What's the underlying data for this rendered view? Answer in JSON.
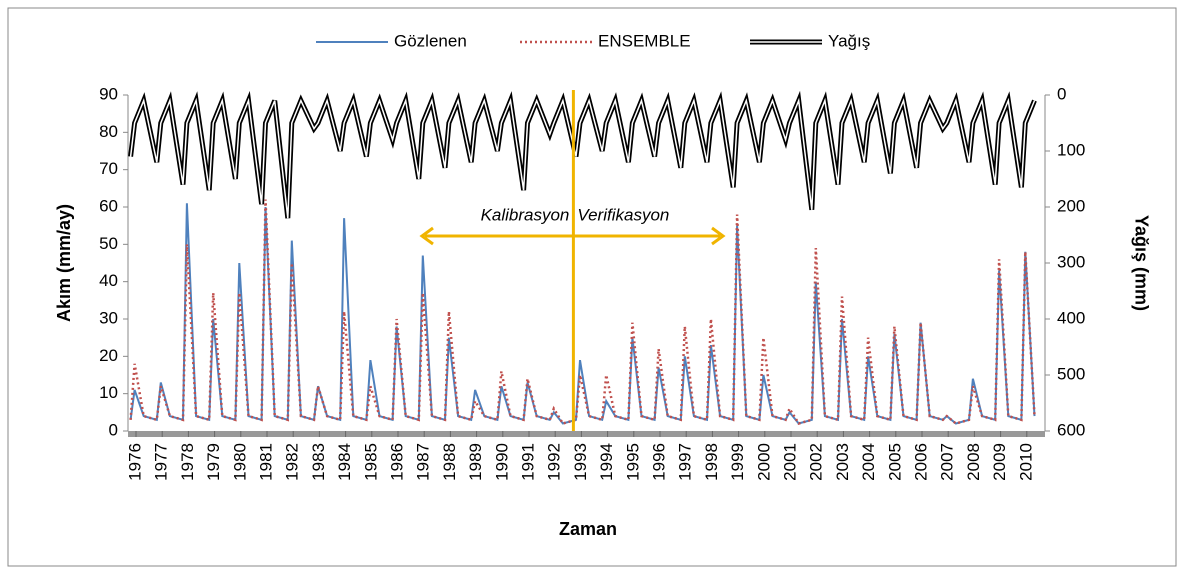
{
  "chart_data": {
    "type": "line",
    "x_label": "Zaman",
    "y_label": "Akım (mm/ay)",
    "y2_label": "Yağış (mm)",
    "annotations": [
      "Kalibrasyon",
      "Verifikasyon"
    ],
    "divider_x": 1993,
    "xlim": [
      1976,
      2011
    ],
    "xticks": [
      1976,
      1977,
      1978,
      1979,
      1980,
      1981,
      1982,
      1983,
      1984,
      1985,
      1986,
      1987,
      1988,
      1989,
      1990,
      1991,
      1992,
      1993,
      1994,
      1995,
      1996,
      1997,
      1998,
      1999,
      2000,
      2001,
      2002,
      2003,
      2004,
      2005,
      2006,
      2007,
      2008,
      2009,
      2010
    ],
    "ylim": [
      0,
      90
    ],
    "yticks": [
      0,
      10,
      20,
      30,
      40,
      50,
      60,
      70,
      80,
      90
    ],
    "y2lim": [
      600,
      0
    ],
    "y2ticks": [
      0,
      100,
      200,
      300,
      400,
      500,
      600
    ],
    "x": [
      1976.1,
      1976.25,
      1976.6,
      1977.1,
      1977.25,
      1977.6,
      1978.1,
      1978.25,
      1978.6,
      1979.1,
      1979.25,
      1979.6,
      1980.1,
      1980.25,
      1980.6,
      1981.1,
      1981.25,
      1981.6,
      1982.1,
      1982.25,
      1982.6,
      1983.1,
      1983.25,
      1983.6,
      1984.1,
      1984.25,
      1984.6,
      1985.1,
      1985.25,
      1985.6,
      1986.1,
      1986.25,
      1986.6,
      1987.1,
      1987.25,
      1987.6,
      1988.1,
      1988.25,
      1988.6,
      1989.1,
      1989.25,
      1989.6,
      1990.1,
      1990.25,
      1990.6,
      1991.1,
      1991.25,
      1991.6,
      1992.1,
      1992.25,
      1992.6,
      1993.1,
      1993.25,
      1993.6,
      1994.1,
      1994.25,
      1994.6,
      1995.1,
      1995.25,
      1995.6,
      1996.1,
      1996.25,
      1996.6,
      1997.1,
      1997.25,
      1997.6,
      1998.1,
      1998.25,
      1998.6,
      1999.1,
      1999.25,
      1999.6,
      2000.1,
      2000.25,
      2000.6,
      2001.1,
      2001.25,
      2001.6,
      2002.1,
      2002.25,
      2002.6,
      2003.1,
      2003.25,
      2003.6,
      2004.1,
      2004.25,
      2004.6,
      2005.1,
      2005.25,
      2005.6,
      2006.1,
      2006.25,
      2006.6,
      2007.1,
      2007.25,
      2007.6,
      2008.1,
      2008.25,
      2008.6,
      2009.1,
      2009.25,
      2009.6,
      2010.1,
      2010.25,
      2010.6
    ],
    "series": [
      {
        "name": "Gözlenen",
        "color": "#4f81bd",
        "style": "solid",
        "values": [
          3,
          11,
          4,
          3,
          13,
          4,
          3,
          61,
          4,
          3,
          30,
          4,
          3,
          45,
          4,
          3,
          60,
          4,
          3,
          51,
          4,
          3,
          12,
          4,
          3,
          57,
          4,
          3,
          19,
          4,
          3,
          28,
          4,
          3,
          47,
          4,
          3,
          25,
          4,
          3,
          11,
          4,
          3,
          12,
          4,
          3,
          13,
          4,
          3,
          5,
          2,
          3,
          19,
          4,
          3,
          8,
          4,
          3,
          25,
          4,
          3,
          17,
          4,
          3,
          20,
          4,
          3,
          23,
          4,
          3,
          55,
          4,
          3,
          15,
          4,
          3,
          5,
          2,
          3,
          40,
          4,
          3,
          30,
          4,
          3,
          20,
          4,
          3,
          26,
          4,
          3,
          29,
          4,
          3,
          4,
          2,
          3,
          14,
          4,
          3,
          43,
          4,
          3,
          48,
          4
        ]
      },
      {
        "name": "ENSEMBLE",
        "color": "#c0504d",
        "style": "dotted",
        "values": [
          3,
          18,
          4,
          3,
          12,
          4,
          3,
          50,
          4,
          3,
          37,
          4,
          3,
          37,
          4,
          3,
          62,
          4,
          3,
          45,
          4,
          3,
          12,
          4,
          3,
          32,
          4,
          3,
          12,
          4,
          3,
          30,
          4,
          3,
          37,
          4,
          3,
          32,
          4,
          3,
          8,
          4,
          3,
          16,
          4,
          3,
          14,
          4,
          3,
          6,
          2,
          3,
          15,
          4,
          3,
          15,
          4,
          3,
          29,
          4,
          3,
          22,
          4,
          3,
          28,
          4,
          3,
          30,
          4,
          3,
          58,
          4,
          3,
          25,
          4,
          3,
          6,
          2,
          3,
          49,
          4,
          3,
          36,
          4,
          3,
          25,
          4,
          3,
          28,
          4,
          3,
          29,
          4,
          3,
          4,
          2,
          3,
          12,
          4,
          3,
          46,
          4,
          3,
          48,
          4
        ]
      },
      {
        "name": "Yağış",
        "color": "#000000",
        "style": "double",
        "axis": "y2",
        "values": [
          110,
          50,
          10,
          120,
          50,
          10,
          160,
          50,
          10,
          170,
          50,
          10,
          150,
          50,
          10,
          195,
          50,
          10,
          220,
          50,
          10,
          60,
          50,
          10,
          100,
          50,
          10,
          110,
          50,
          10,
          80,
          50,
          10,
          150,
          50,
          10,
          130,
          50,
          10,
          120,
          50,
          10,
          100,
          50,
          10,
          170,
          50,
          10,
          70,
          50,
          10,
          110,
          50,
          10,
          100,
          50,
          10,
          120,
          50,
          10,
          110,
          50,
          10,
          130,
          50,
          10,
          120,
          50,
          10,
          165,
          50,
          10,
          120,
          50,
          10,
          80,
          50,
          10,
          205,
          50,
          10,
          160,
          50,
          10,
          120,
          50,
          10,
          140,
          50,
          10,
          130,
          50,
          10,
          60,
          50,
          10,
          120,
          50,
          10,
          160,
          50,
          10,
          165,
          50,
          10
        ]
      }
    ]
  }
}
